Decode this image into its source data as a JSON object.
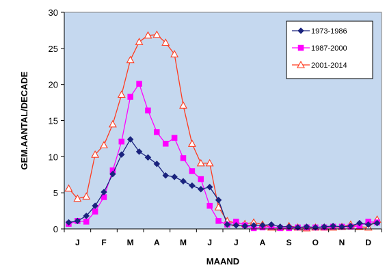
{
  "colors": {
    "plot_background": "#c5d8ef",
    "axis": "#000000"
  },
  "chart_data": {
    "type": "line",
    "title": "",
    "xlabel": "MAAND",
    "ylabel": "GEM.AANTAL/DECADE",
    "ylim": [
      0,
      30
    ],
    "yticks": [
      "0",
      "5",
      "10",
      "15",
      "20",
      "25",
      "30"
    ],
    "month_labels": [
      "J",
      "F",
      "M",
      "A",
      "M",
      "J",
      "J",
      "A",
      "S",
      "O",
      "N",
      "D"
    ],
    "decades_per_month": 3,
    "grid": false,
    "legend_position": "top-right",
    "series": [
      {
        "name": "1973-1986",
        "color": "#1a237e",
        "marker": "diamond",
        "values": [
          0.9,
          1.1,
          1.8,
          3.2,
          5.1,
          7.6,
          10.3,
          12.4,
          10.7,
          9.9,
          9.0,
          7.4,
          7.2,
          6.6,
          6.0,
          5.5,
          5.8,
          4.0,
          0.6,
          0.5,
          0.4,
          0.5,
          0.5,
          0.6,
          0.3,
          0.3,
          0.2,
          0.3,
          0.2,
          0.3,
          0.4,
          0.3,
          0.4,
          0.8,
          0.6,
          0.8
        ]
      },
      {
        "name": "1987-2000",
        "color": "#ff00ff",
        "marker": "square",
        "values": [
          0.7,
          1.1,
          1.0,
          2.4,
          4.4,
          8.1,
          12.1,
          18.3,
          20.1,
          16.4,
          13.4,
          11.8,
          12.6,
          9.8,
          8.0,
          6.9,
          3.2,
          1.1,
          0.6,
          1.0,
          0.5,
          0.1,
          0.2,
          0.3,
          0.1,
          0.1,
          0.2,
          0.2,
          0.2,
          0.2,
          0.3,
          0.3,
          0.3,
          0.4,
          1.0,
          0.9
        ]
      },
      {
        "name": "2001-2014",
        "color": "#ff3b1f",
        "marker": "triangle",
        "values": [
          5.6,
          4.2,
          4.5,
          10.3,
          11.6,
          14.5,
          18.6,
          23.4,
          25.9,
          26.8,
          26.9,
          25.8,
          24.2,
          17.1,
          11.8,
          9.1,
          9.1,
          3.0,
          1.1,
          0.8,
          0.7,
          0.9,
          0.6,
          0.2,
          0.2,
          0.4,
          0.2,
          0.1,
          0.2,
          0.2,
          0.2,
          0.3,
          0.6,
          0.3,
          0.2,
          1.3
        ]
      }
    ]
  }
}
